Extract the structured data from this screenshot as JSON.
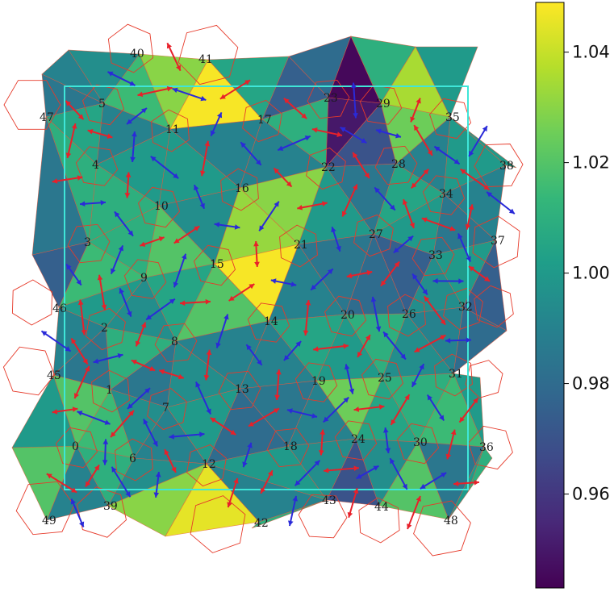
{
  "colormap": {
    "name": "viridis",
    "stops": [
      "#440154",
      "#482878",
      "#3e4a89",
      "#31688e",
      "#26828e",
      "#1f9e89",
      "#35b779",
      "#6ece58",
      "#b5de2b",
      "#fde725"
    ],
    "range": [
      0.943,
      1.049
    ]
  },
  "colorbar": {
    "ticks": [
      {
        "value": 0.96,
        "label": "0.96"
      },
      {
        "value": 0.98,
        "label": "0.98"
      },
      {
        "value": 1.0,
        "label": "1.00"
      },
      {
        "value": 1.02,
        "label": "1.02"
      },
      {
        "value": 1.04,
        "label": "1.04"
      }
    ]
  },
  "colors": {
    "edge": "#e8553a",
    "ring": "#e63a2a",
    "box": "#3fe6d8",
    "arrow_red": "#e8202a",
    "arrow_blue": "#2a2ad8"
  },
  "node_labels": [
    "0",
    "1",
    "2",
    "3",
    "4",
    "5",
    "6",
    "7",
    "8",
    "9",
    "10",
    "11",
    "12",
    "13",
    "14",
    "15",
    "16",
    "17",
    "18",
    "19",
    "20",
    "21",
    "22",
    "23",
    "24",
    "25",
    "26",
    "27",
    "28",
    "29",
    "30",
    "31",
    "32",
    "33",
    "34",
    "35",
    "36",
    "37",
    "38",
    "39",
    "40",
    "41",
    "42",
    "43",
    "44",
    "45",
    "46",
    "47",
    "48",
    "49"
  ]
}
